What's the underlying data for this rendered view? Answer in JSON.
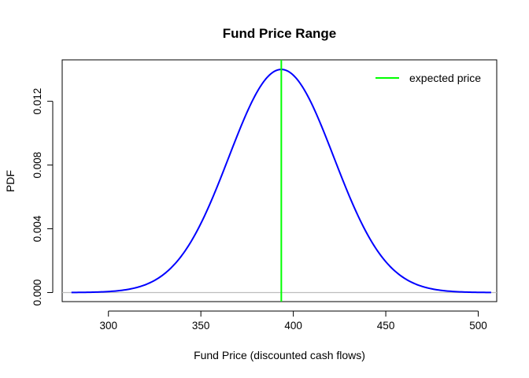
{
  "chart_data": {
    "type": "line",
    "title": "Fund Price Range",
    "xlabel": "Fund Price (discounted cash flows)",
    "ylabel": "PDF",
    "xlim": [
      275,
      510
    ],
    "ylim": [
      -0.00057,
      0.0146
    ],
    "x_ticks": [
      300,
      350,
      400,
      450,
      500
    ],
    "x_tick_labels": [
      "300",
      "350",
      "400",
      "450",
      "500"
    ],
    "y_ticks": [
      0.0,
      0.004,
      0.008,
      0.012
    ],
    "y_tick_labels": [
      "0.000",
      "0.004",
      "0.008",
      "0.012"
    ],
    "series": [
      {
        "color": "#0000ff",
        "distribution": "normal",
        "mean": 393.5,
        "sd": 28.4,
        "x_range": [
          280,
          507
        ],
        "points": [
          [
            280,
            0.0
          ],
          [
            300,
            0.0003
          ],
          [
            320,
            0.0015
          ],
          [
            340,
            0.0034
          ],
          [
            360,
            0.0071
          ],
          [
            380,
            0.0125
          ],
          [
            393.5,
            0.014
          ],
          [
            410,
            0.0119
          ],
          [
            430,
            0.0064
          ],
          [
            450,
            0.0027
          ],
          [
            470,
            0.0007
          ],
          [
            490,
            0.0001
          ],
          [
            507,
            0.0
          ]
        ]
      }
    ],
    "reference_lines": [
      {
        "orientation": "vertical",
        "x": 393.5,
        "color": "#00ff00",
        "label": "expected price"
      },
      {
        "orientation": "horizontal",
        "y": 0.0,
        "color": "#bebebe"
      }
    ],
    "legend": {
      "position": "top-right",
      "box": false,
      "entries": [
        {
          "label": "expected price",
          "color": "#00ff00"
        }
      ]
    },
    "grid": false
  }
}
